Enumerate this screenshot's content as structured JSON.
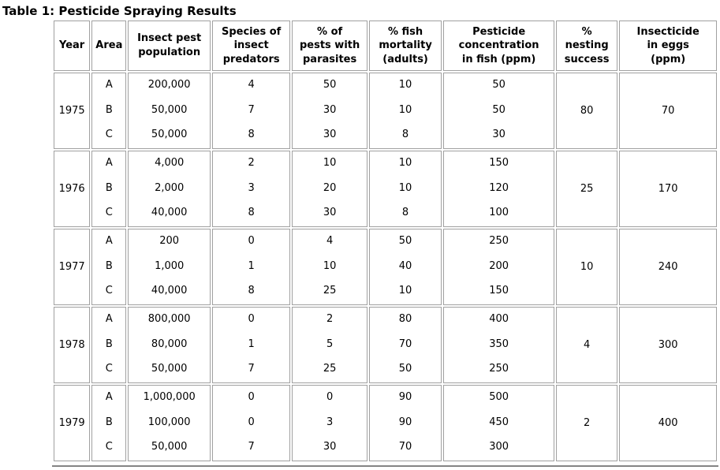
{
  "title": "Table 1: Pesticide Spraying Results",
  "chart_data": {
    "type": "table",
    "title": "Table 1: Pesticide Spraying Results",
    "columns": [
      "Year",
      "Area",
      "Insect pest\npopulation",
      "Species of\ninsect\npredators",
      "% of\npests with\nparasites",
      "% fish\nmortality\n(adults)",
      "Pesticide\nconcentration\nin fish (ppm)",
      "%\nnesting\nsuccess",
      "Insecticide\nin eggs\n(ppm)"
    ],
    "layout_note": "Year, % nesting success and Insecticide in eggs values span the three area rows (A, B, C) of each year group",
    "groups": [
      {
        "year": "1975",
        "areas": [
          "A",
          "B",
          "C"
        ],
        "population": [
          "200,000",
          "50,000",
          "50,000"
        ],
        "predators": [
          "4",
          "7",
          "8"
        ],
        "parasites": [
          "50",
          "30",
          "30"
        ],
        "mortality": [
          "10",
          "10",
          "8"
        ],
        "concentration": [
          "50",
          "50",
          "30"
        ],
        "nesting": "80",
        "eggs": "70"
      },
      {
        "year": "1976",
        "areas": [
          "A",
          "B",
          "C"
        ],
        "population": [
          "4,000",
          "2,000",
          "40,000"
        ],
        "predators": [
          "2",
          "3",
          "8"
        ],
        "parasites": [
          "10",
          "20",
          "30"
        ],
        "mortality": [
          "10",
          "10",
          "8"
        ],
        "concentration": [
          "150",
          "120",
          "100"
        ],
        "nesting": "25",
        "eggs": "170"
      },
      {
        "year": "1977",
        "areas": [
          "A",
          "B",
          "C"
        ],
        "population": [
          "200",
          "1,000",
          "40,000"
        ],
        "predators": [
          "0",
          "1",
          "8"
        ],
        "parasites": [
          "4",
          "10",
          "25"
        ],
        "mortality": [
          "50",
          "40",
          "10"
        ],
        "concentration": [
          "250",
          "200",
          "150"
        ],
        "nesting": "10",
        "eggs": "240"
      },
      {
        "year": "1978",
        "areas": [
          "A",
          "B",
          "C"
        ],
        "population": [
          "800,000",
          "80,000",
          "50,000"
        ],
        "predators": [
          "0",
          "1",
          "7"
        ],
        "parasites": [
          "2",
          "5",
          "25"
        ],
        "mortality": [
          "80",
          "70",
          "50"
        ],
        "concentration": [
          "400",
          "350",
          "250"
        ],
        "nesting": "4",
        "eggs": "300"
      },
      {
        "year": "1979",
        "areas": [
          "A",
          "B",
          "C"
        ],
        "population": [
          "1,000,000",
          "100,000",
          "50,000"
        ],
        "predators": [
          "0",
          "0",
          "7"
        ],
        "parasites": [
          "0",
          "3",
          "30"
        ],
        "mortality": [
          "90",
          "90",
          "70"
        ],
        "concentration": [
          "500",
          "450",
          "300"
        ],
        "nesting": "2",
        "eggs": "400"
      }
    ],
    "colors": {
      "text": "#000000",
      "border": "#a0a0a0",
      "background": "#ffffff"
    }
  }
}
